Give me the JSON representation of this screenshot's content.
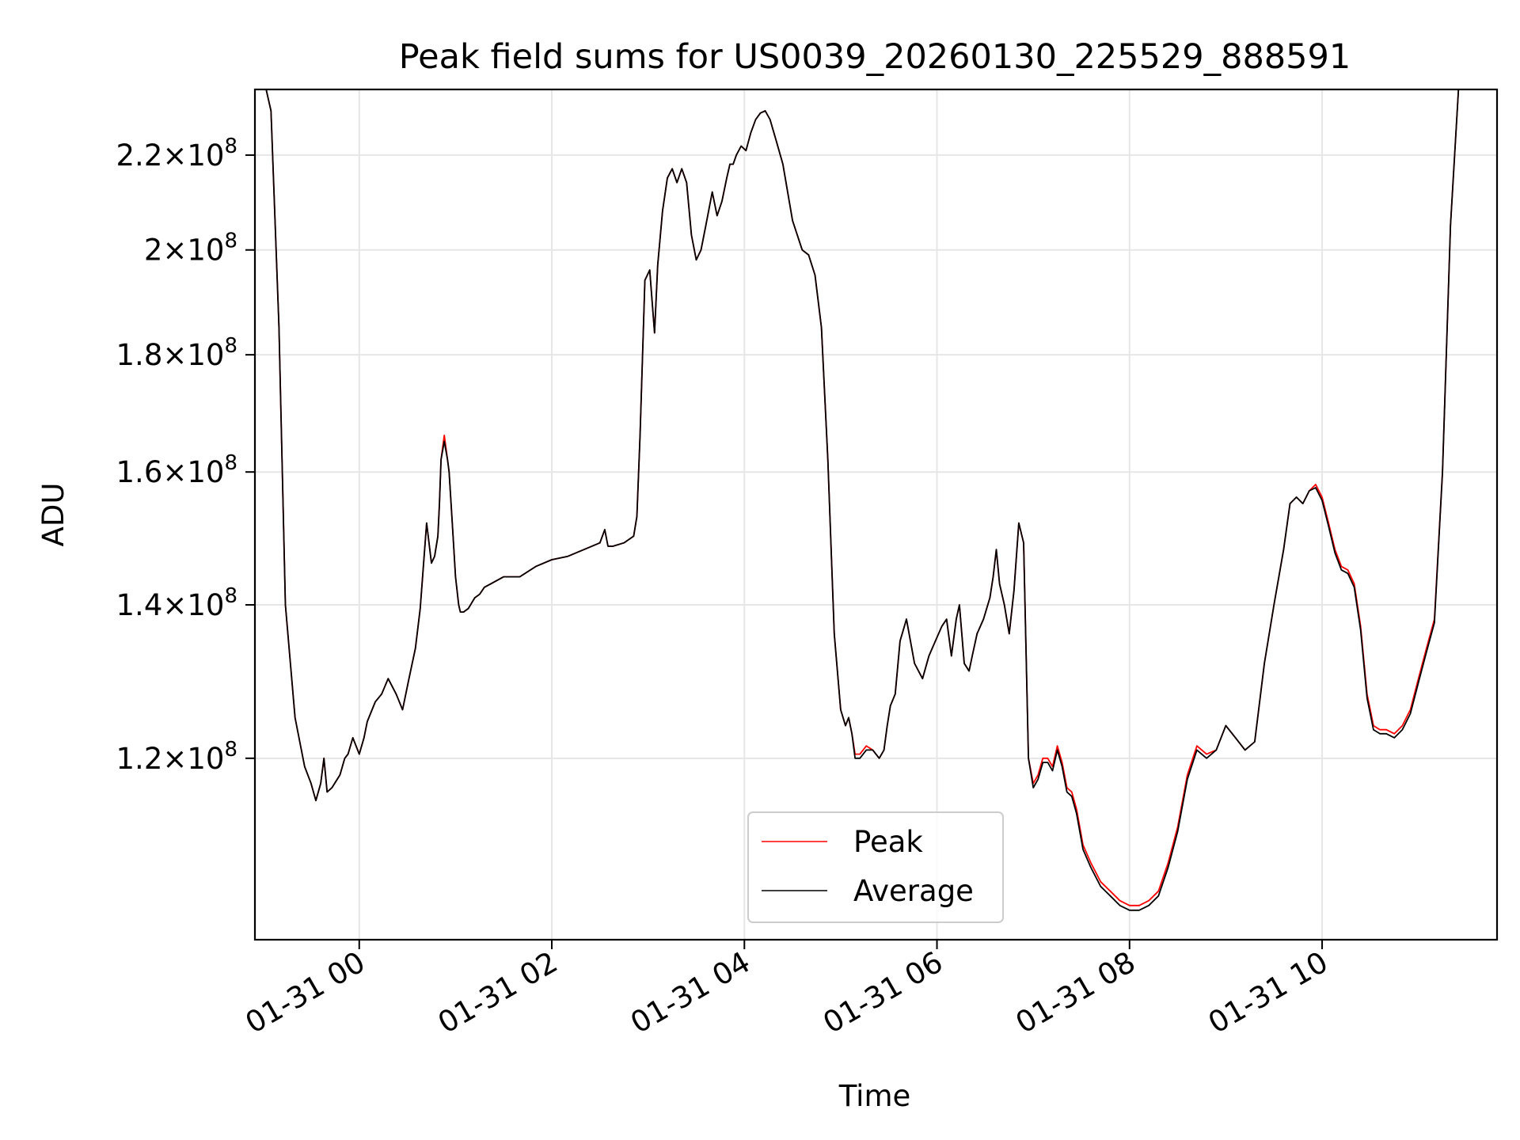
{
  "chart_data": {
    "type": "line",
    "title": "Peak field sums for US0039_20260130_225529_888591",
    "xlabel": "Time",
    "ylabel": "ADU",
    "y_scale": "log",
    "xlim": [
      "2026-01-30T22:55:00",
      "2026-01-31T11:49:00"
    ],
    "ylim": [
      100000000.0,
      235000000.0
    ],
    "grid": true,
    "legend_position": "lower center",
    "x_ticks": [
      "01-31 00",
      "01-31 02",
      "01-31 04",
      "01-31 06",
      "01-31 08",
      "01-31 10"
    ],
    "x_tick_times": [
      "2026-01-31T00:00:00",
      "2026-01-31T02:00:00",
      "2026-01-31T04:00:00",
      "2026-01-31T06:00:00",
      "2026-01-31T08:00:00",
      "2026-01-31T10:00:00"
    ],
    "y_ticks": [
      {
        "value": 120000000.0,
        "mant": "1.2",
        "exp": "8"
      },
      {
        "value": 140000000.0,
        "mant": "1.4",
        "exp": "8"
      },
      {
        "value": 160000000.0,
        "mant": "1.6",
        "exp": "8"
      },
      {
        "value": 180000000.0,
        "mant": "1.8",
        "exp": "8"
      },
      {
        "value": 200000000.0,
        "mant": "2",
        "exp": "8"
      },
      {
        "value": 220000000.0,
        "mant": "2.2",
        "exp": "8"
      }
    ],
    "series": [
      {
        "name": "Peak",
        "color": "#ff0000"
      },
      {
        "name": "Average",
        "color": "#000000"
      }
    ],
    "x": [
      "2026-01-30T22:55",
      "2026-01-30T23:02",
      "2026-01-30T23:05",
      "2026-01-30T23:10",
      "2026-01-30T23:14",
      "2026-01-30T23:20",
      "2026-01-30T23:26",
      "2026-01-30T23:30",
      "2026-01-30T23:33",
      "2026-01-30T23:36",
      "2026-01-30T23:38",
      "2026-01-30T23:40",
      "2026-01-30T23:43",
      "2026-01-30T23:48",
      "2026-01-30T23:51",
      "2026-01-30T23:53",
      "2026-01-30T23:56",
      "2026-01-31T00:00",
      "2026-01-31T00:03",
      "2026-01-31T00:05",
      "2026-01-31T00:10",
      "2026-01-31T00:14",
      "2026-01-31T00:18",
      "2026-01-31T00:23",
      "2026-01-31T00:27",
      "2026-01-31T00:31",
      "2026-01-31T00:35",
      "2026-01-31T00:38",
      "2026-01-31T00:42",
      "2026-01-31T00:45",
      "2026-01-31T00:47",
      "2026-01-31T00:49",
      "2026-01-31T00:50",
      "2026-01-31T00:51",
      "2026-01-31T00:53",
      "2026-01-31T00:55",
      "2026-01-31T00:56",
      "2026-01-31T00:58",
      "2026-01-31T01:00",
      "2026-01-31T01:02",
      "2026-01-31T01:03",
      "2026-01-31T01:05",
      "2026-01-31T01:08",
      "2026-01-31T01:12",
      "2026-01-31T01:15",
      "2026-01-31T01:18",
      "2026-01-31T01:22",
      "2026-01-31T01:30",
      "2026-01-31T01:40",
      "2026-01-31T01:50",
      "2026-01-31T02:00",
      "2026-01-31T02:10",
      "2026-01-31T02:20",
      "2026-01-31T02:30",
      "2026-01-31T02:33",
      "2026-01-31T02:35",
      "2026-01-31T02:38",
      "2026-01-31T02:45",
      "2026-01-31T02:51",
      "2026-01-31T02:53",
      "2026-01-31T02:55",
      "2026-01-31T02:58",
      "2026-01-31T03:01",
      "2026-01-31T03:04",
      "2026-01-31T03:06",
      "2026-01-31T03:09",
      "2026-01-31T03:12",
      "2026-01-31T03:15",
      "2026-01-31T03:18",
      "2026-01-31T03:21",
      "2026-01-31T03:24",
      "2026-01-31T03:27",
      "2026-01-31T03:30",
      "2026-01-31T03:33",
      "2026-01-31T03:36",
      "2026-01-31T03:40",
      "2026-01-31T03:43",
      "2026-01-31T03:46",
      "2026-01-31T03:49",
      "2026-01-31T03:51",
      "2026-01-31T03:53",
      "2026-01-31T03:55",
      "2026-01-31T03:58",
      "2026-01-31T04:01",
      "2026-01-31T04:04",
      "2026-01-31T04:07",
      "2026-01-31T04:10",
      "2026-01-31T04:13",
      "2026-01-31T04:16",
      "2026-01-31T04:20",
      "2026-01-31T04:24",
      "2026-01-31T04:30",
      "2026-01-31T04:36",
      "2026-01-31T04:40",
      "2026-01-31T04:44",
      "2026-01-31T04:48",
      "2026-01-31T04:52",
      "2026-01-31T04:56",
      "2026-01-31T05:00",
      "2026-01-31T05:03",
      "2026-01-31T05:05",
      "2026-01-31T05:07",
      "2026-01-31T05:09",
      "2026-01-31T05:12",
      "2026-01-31T05:16",
      "2026-01-31T05:20",
      "2026-01-31T05:24",
      "2026-01-31T05:27",
      "2026-01-31T05:29",
      "2026-01-31T05:31",
      "2026-01-31T05:34",
      "2026-01-31T05:37",
      "2026-01-31T05:41",
      "2026-01-31T05:46",
      "2026-01-31T05:51",
      "2026-01-31T05:55",
      "2026-01-31T05:59",
      "2026-01-31T06:03",
      "2026-01-31T06:06",
      "2026-01-31T06:09",
      "2026-01-31T06:12",
      "2026-01-31T06:14",
      "2026-01-31T06:17",
      "2026-01-31T06:20",
      "2026-01-31T06:22",
      "2026-01-31T06:25",
      "2026-01-31T06:29",
      "2026-01-31T06:33",
      "2026-01-31T06:35",
      "2026-01-31T06:37",
      "2026-01-31T06:39",
      "2026-01-31T06:42",
      "2026-01-31T06:45",
      "2026-01-31T06:48",
      "2026-01-31T06:51",
      "2026-01-31T06:54",
      "2026-01-31T06:57",
      "2026-01-31T07:00",
      "2026-01-31T07:03",
      "2026-01-31T07:06",
      "2026-01-31T07:09",
      "2026-01-31T07:12",
      "2026-01-31T07:15",
      "2026-01-31T07:18",
      "2026-01-31T07:21",
      "2026-01-31T07:24",
      "2026-01-31T07:27",
      "2026-01-31T07:31",
      "2026-01-31T07:36",
      "2026-01-31T07:42",
      "2026-01-31T07:48",
      "2026-01-31T07:54",
      "2026-01-31T08:00",
      "2026-01-31T08:06",
      "2026-01-31T08:12",
      "2026-01-31T08:18",
      "2026-01-31T08:24",
      "2026-01-31T08:30",
      "2026-01-31T08:36",
      "2026-01-31T08:42",
      "2026-01-31T08:48",
      "2026-01-31T08:54",
      "2026-01-31T09:00",
      "2026-01-31T09:06",
      "2026-01-31T09:12",
      "2026-01-31T09:18",
      "2026-01-31T09:24",
      "2026-01-31T09:30",
      "2026-01-31T09:36",
      "2026-01-31T09:40",
      "2026-01-31T09:44",
      "2026-01-31T09:48",
      "2026-01-31T09:52",
      "2026-01-31T09:56",
      "2026-01-31T10:00",
      "2026-01-31T10:04",
      "2026-01-31T10:08",
      "2026-01-31T10:12",
      "2026-01-31T10:16",
      "2026-01-31T10:20",
      "2026-01-31T10:24",
      "2026-01-31T10:28",
      "2026-01-31T10:32",
      "2026-01-31T10:36",
      "2026-01-31T10:40",
      "2026-01-31T10:45",
      "2026-01-31T10:50",
      "2026-01-31T10:55",
      "2026-01-31T11:00",
      "2026-01-31T11:05",
      "2026-01-31T11:10",
      "2026-01-31T11:15",
      "2026-01-31T11:20",
      "2026-01-31T11:25",
      "2026-01-31T11:30",
      "2026-01-31T11:35",
      "2026-01-31T11:40",
      "2026-01-31T11:45",
      "2026-01-31T11:49"
    ],
    "peak": [
      235000000.0,
      235000000.0,
      230000000.0,
      185000000.0,
      140000000.0,
      125000000.0,
      119000000.0,
      117000000.0,
      115000000.0,
      117000000.0,
      120000000.0,
      116000000.0,
      116500000.0,
      118000000.0,
      120000000.0,
      120500000.0,
      122500000.0,
      120500000.0,
      122500000.0,
      124500000.0,
      127000000.0,
      128000000.0,
      130000000.0,
      128000000.0,
      126000000.0,
      130000000.0,
      134000000.0,
      139500000.0,
      152000000.0,
      146000000.0,
      147000000.0,
      150000000.0,
      155000000.0,
      162000000.0,
      166000000.0,
      162000000.0,
      160000000.0,
      152000000.0,
      144000000.0,
      140000000.0,
      139000000.0,
      139000000.0,
      139500000.0,
      141000000.0,
      141500000.0,
      142500000.0,
      143000000.0,
      144000000.0,
      144000000.0,
      145500000.0,
      146500000.0,
      147000000.0,
      148000000.0,
      149000000.0,
      151000000.0,
      148500000.0,
      148500000.0,
      149000000.0,
      150000000.0,
      153000000.0,
      166000000.0,
      194000000.0,
      196000000.0,
      184000000.0,
      197000000.0,
      208000000.0,
      215000000.0,
      217000000.0,
      214000000.0,
      217000000.0,
      214000000.0,
      203000000.0,
      198000000.0,
      200000000.0,
      205000000.0,
      212000000.0,
      207000000.0,
      210000000.0,
      215000000.0,
      218000000.0,
      218000000.0,
      220000000.0,
      222000000.0,
      221000000.0,
      225000000.0,
      228000000.0,
      229500000.0,
      230000000.0,
      228000000.0,
      223000000.0,
      218000000.0,
      206000000.0,
      200000000.0,
      199000000.0,
      195000000.0,
      185000000.0,
      162000000.0,
      136000000.0,
      126000000.0,
      124000000.0,
      125000000.0,
      123000000.0,
      120500000.0,
      120500000.0,
      121500000.0,
      121000000.0,
      120000000.0,
      121000000.0,
      124000000.0,
      126500000.0,
      128000000.0,
      135000000.0,
      138000000.0,
      132000000.0,
      130000000.0,
      133000000.0,
      135000000.0,
      137000000.0,
      138000000.0,
      133000000.0,
      138000000.0,
      140000000.0,
      132000000.0,
      131000000.0,
      133000000.0,
      136000000.0,
      138000000.0,
      141000000.0,
      144000000.0,
      148000000.0,
      143000000.0,
      140000000.0,
      136000000.0,
      142000000.0,
      152000000.0,
      149000000.0,
      120000000.0,
      117000000.0,
      118000000.0,
      120000000.0,
      120000000.0,
      119000000.0,
      121500000.0,
      119500000.0,
      116500000.0,
      116000000.0,
      114000000.0,
      110000000.0,
      108000000.0,
      106000000.0,
      105000000.0,
      104000000.0,
      103500000.0,
      103500000.0,
      104000000.0,
      105000000.0,
      108000000.0,
      112000000.0,
      118000000.0,
      121500000.0,
      120500000.0,
      121000000.0,
      124000000.0,
      122500000.0,
      121000000.0,
      122000000.0,
      132000000.0,
      140000000.0,
      148000000.0,
      155000000.0,
      156000000.0,
      155000000.0,
      157000000.0,
      158000000.0,
      156000000.0,
      152000000.0,
      148000000.0,
      145500000.0,
      145000000.0,
      143000000.0,
      137000000.0,
      128000000.0,
      124000000.0,
      123500000.0,
      123500000.0,
      123000000.0,
      124000000.0,
      126000000.0,
      130000000.0,
      134000000.0,
      138000000.0,
      160000000.0,
      205000000.0,
      235000000.0,
      235000000.0
    ],
    "average": [
      235000000.0,
      235000000.0,
      230000000.0,
      185000000.0,
      140000000.0,
      125000000.0,
      119000000.0,
      117000000.0,
      115000000.0,
      117000000.0,
      120000000.0,
      116000000.0,
      116500000.0,
      118000000.0,
      120000000.0,
      120500000.0,
      122500000.0,
      120500000.0,
      122500000.0,
      124500000.0,
      127000000.0,
      128000000.0,
      130000000.0,
      128000000.0,
      126000000.0,
      130000000.0,
      134000000.0,
      139500000.0,
      152000000.0,
      146000000.0,
      147000000.0,
      150000000.0,
      155000000.0,
      162000000.0,
      165000000.0,
      162000000.0,
      160000000.0,
      152000000.0,
      144000000.0,
      140000000.0,
      139000000.0,
      139000000.0,
      139500000.0,
      141000000.0,
      141500000.0,
      142500000.0,
      143000000.0,
      144000000.0,
      144000000.0,
      145500000.0,
      146500000.0,
      147000000.0,
      148000000.0,
      149000000.0,
      151000000.0,
      148500000.0,
      148500000.0,
      149000000.0,
      150000000.0,
      153000000.0,
      166000000.0,
      194000000.0,
      196000000.0,
      184000000.0,
      197000000.0,
      208000000.0,
      215000000.0,
      217000000.0,
      214000000.0,
      217000000.0,
      214000000.0,
      203000000.0,
      198000000.0,
      200000000.0,
      205000000.0,
      212000000.0,
      207000000.0,
      210000000.0,
      215000000.0,
      218000000.0,
      218000000.0,
      220000000.0,
      222000000.0,
      221000000.0,
      225000000.0,
      228000000.0,
      229500000.0,
      230000000.0,
      228000000.0,
      223000000.0,
      218000000.0,
      206000000.0,
      200000000.0,
      199000000.0,
      195000000.0,
      185000000.0,
      162000000.0,
      136000000.0,
      126000000.0,
      124000000.0,
      125000000.0,
      123000000.0,
      120000000.0,
      120000000.0,
      121000000.0,
      121000000.0,
      120000000.0,
      121000000.0,
      124000000.0,
      126500000.0,
      128000000.0,
      135000000.0,
      138000000.0,
      132000000.0,
      130000000.0,
      133000000.0,
      135000000.0,
      137000000.0,
      138000000.0,
      133000000.0,
      138000000.0,
      140000000.0,
      132000000.0,
      131000000.0,
      133000000.0,
      136000000.0,
      138000000.0,
      141000000.0,
      144000000.0,
      148000000.0,
      143000000.0,
      140000000.0,
      136000000.0,
      142000000.0,
      152000000.0,
      149000000.0,
      120000000.0,
      116500000.0,
      117500000.0,
      119500000.0,
      119500000.0,
      118500000.0,
      121000000.0,
      119000000.0,
      116000000.0,
      115500000.0,
      113500000.0,
      109500000.0,
      107500000.0,
      105500000.0,
      104500000.0,
      103500000.0,
      103000000.0,
      103000000.0,
      103500000.0,
      104500000.0,
      107500000.0,
      111500000.0,
      117500000.0,
      121000000.0,
      120000000.0,
      121000000.0,
      124000000.0,
      122500000.0,
      121000000.0,
      122000000.0,
      132000000.0,
      140000000.0,
      148000000.0,
      155000000.0,
      156000000.0,
      155000000.0,
      157000000.0,
      157500000.0,
      155500000.0,
      151500000.0,
      147500000.0,
      145000000.0,
      144500000.0,
      142500000.0,
      136500000.0,
      127500000.0,
      123500000.0,
      123000000.0,
      123000000.0,
      122500000.0,
      123500000.0,
      125500000.0,
      129500000.0,
      133500000.0,
      137500000.0,
      160000000.0,
      205000000.0,
      235000000.0,
      235000000.0
    ]
  }
}
